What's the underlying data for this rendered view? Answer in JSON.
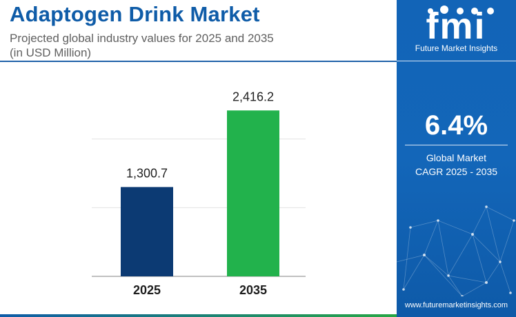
{
  "header": {
    "title": "Adaptogen Drink Market",
    "subtitle_line1": "Projected global industry values for 2025 and 2035",
    "subtitle_line2": "(in USD Million)"
  },
  "chart_data": {
    "type": "bar",
    "categories": [
      "2025",
      "2035"
    ],
    "values": [
      1300.7,
      2416.2
    ],
    "value_labels": [
      "1,300.7",
      "2,416.2"
    ],
    "bar_colors": [
      "#0c3a73",
      "#22b24c"
    ],
    "ylim": [
      0,
      2700
    ],
    "grid": true
  },
  "sidebar": {
    "logo_brand": "fmi",
    "logo_name": "Future Market Insights",
    "cagr_value": "6.4%",
    "cagr_label_line1": "Global Market",
    "cagr_label_line2": "CAGR 2025 - 2035",
    "url": "www.futuremarketinsights.com"
  },
  "colors": {
    "title": "#0f5ca8",
    "sidebar_bg": "#1264b7",
    "accent_green": "#22b24c",
    "accent_navy": "#0c3a73"
  }
}
